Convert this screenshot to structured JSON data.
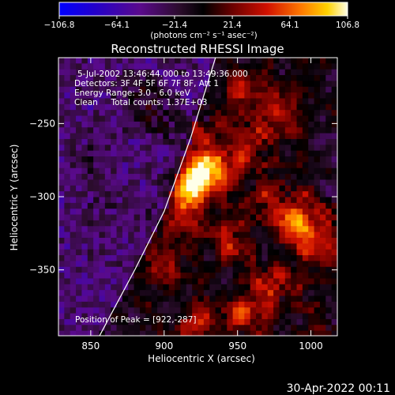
{
  "chart_data": {
    "type": "heatmap",
    "title": "Reconstructed RHESSI Image",
    "xlabel": "Heliocentric X (arcsec)",
    "ylabel": "Heliocentric Y (arcsec)",
    "xlim": [
      828,
      1018
    ],
    "ylim": [
      -395,
      -205
    ],
    "xticks": [
      850,
      900,
      950,
      1000
    ],
    "xtick_labels": [
      "850",
      "900",
      "950",
      "1000"
    ],
    "yticks": [
      -250,
      -300,
      -350
    ],
    "ytick_labels": [
      "−250",
      "−300",
      "−350"
    ],
    "colorbar": {
      "range": [
        -106.8,
        106.8
      ],
      "ticks": [
        -106.8,
        -64.1,
        -21.4,
        21.4,
        64.1,
        106.8
      ],
      "tick_labels": [
        "−106.8",
        "−64.1",
        "−21.4",
        "21.4",
        "64.1",
        "106.8"
      ],
      "unit_label": "(photons cm⁻² s⁻¹ asec⁻²)"
    },
    "info_lines": [
      "5-Jul-2002 13:46:44.000 to 13:49:36.000",
      "Detectors: 3F 4F 5F 6F 7F 8F, Att 1",
      "Energy Range: 3.0 - 6.0 keV",
      "Clean     Total counts: 1.37E+03"
    ],
    "peak_label": "Position of Peak = [922,-287]",
    "peak_position": [
      922,
      -287
    ],
    "peak_value": 106.8,
    "sources": [
      {
        "x": 922,
        "y": -287,
        "value": 106.8
      },
      {
        "x": 938,
        "y": -275,
        "value": 55
      },
      {
        "x": 908,
        "y": -250,
        "value": 45
      },
      {
        "x": 960,
        "y": -260,
        "value": 40
      },
      {
        "x": 990,
        "y": -315,
        "value": 80
      },
      {
        "x": 1005,
        "y": -335,
        "value": 50
      },
      {
        "x": 945,
        "y": -330,
        "value": 45
      },
      {
        "x": 975,
        "y": -360,
        "value": 40
      },
      {
        "x": 900,
        "y": -345,
        "value": 35
      },
      {
        "x": 955,
        "y": -380,
        "value": 50
      },
      {
        "x": 925,
        "y": -385,
        "value": 40
      },
      {
        "x": 890,
        "y": -240,
        "value": 70
      },
      {
        "x": 885,
        "y": -225,
        "value": 45
      },
      {
        "x": 950,
        "y": -230,
        "value": 40
      },
      {
        "x": 985,
        "y": -240,
        "value": 35
      },
      {
        "x": 855,
        "y": -270,
        "value": 45
      },
      {
        "x": 860,
        "y": -300,
        "value": 30
      },
      {
        "x": 915,
        "y": -310,
        "value": 50
      },
      {
        "x": 965,
        "y": -300,
        "value": 35
      }
    ],
    "limb_curve": [
      [
        856,
        -395
      ],
      [
        880,
        -350
      ],
      [
        900,
        -310
      ],
      [
        918,
        -260
      ],
      [
        935,
        -205
      ]
    ],
    "grid": false
  },
  "footer_timestamp": "30-Apr-2022 00:11"
}
